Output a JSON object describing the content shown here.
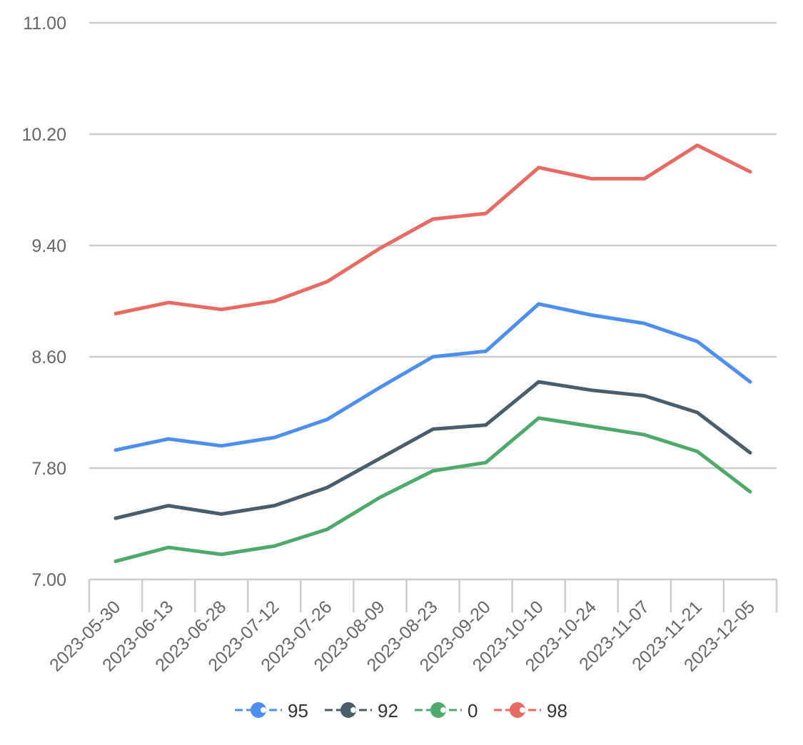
{
  "chart_data": {
    "type": "line",
    "categories": [
      "2023-05-30",
      "2023-06-13",
      "2023-06-28",
      "2023-07-12",
      "2023-07-26",
      "2023-08-09",
      "2023-08-23",
      "2023-09-20",
      "2023-10-10",
      "2023-10-24",
      "2023-11-07",
      "2023-11-21",
      "2023-12-05"
    ],
    "ylim": [
      7.0,
      11.0
    ],
    "yticks": [
      "7.00",
      "7.80",
      "8.60",
      "9.40",
      "10.20",
      "11.00"
    ],
    "grid": true,
    "legend_position": "bottom",
    "series": [
      {
        "name": "95",
        "color": "#4c8ff0",
        "values": [
          7.93,
          8.01,
          7.96,
          8.02,
          8.15,
          8.38,
          8.6,
          8.64,
          8.98,
          8.9,
          8.84,
          8.71,
          8.42
        ]
      },
      {
        "name": "92",
        "color": "#4a5d6b",
        "values": [
          7.44,
          7.53,
          7.47,
          7.53,
          7.66,
          7.87,
          8.08,
          8.11,
          8.42,
          8.36,
          8.32,
          8.2,
          7.91
        ]
      },
      {
        "name": "0",
        "color": "#4da96c",
        "values": [
          7.13,
          7.23,
          7.18,
          7.24,
          7.36,
          7.59,
          7.78,
          7.84,
          8.16,
          8.1,
          8.04,
          7.92,
          7.63
        ]
      },
      {
        "name": "98",
        "color": "#e86a63",
        "values": [
          8.91,
          8.99,
          8.94,
          9.0,
          9.14,
          9.38,
          9.59,
          9.63,
          9.96,
          9.88,
          9.88,
          10.12,
          9.93
        ]
      }
    ]
  }
}
